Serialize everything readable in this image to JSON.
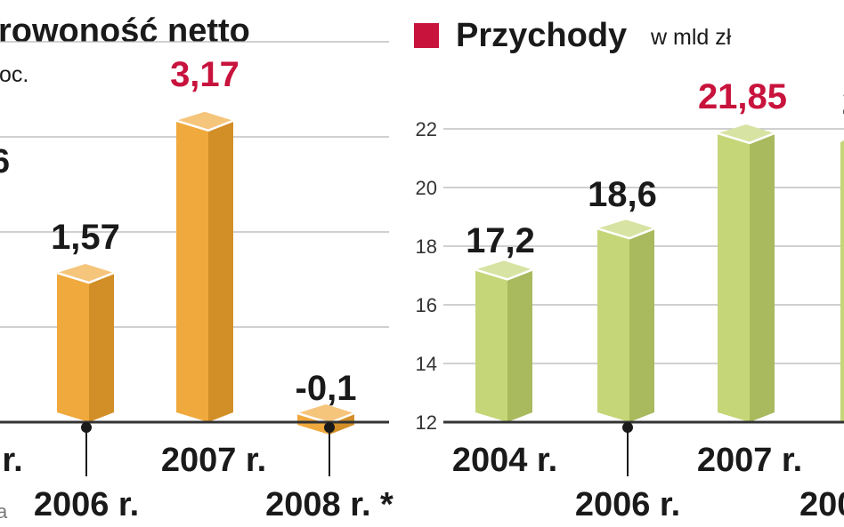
{
  "colors": {
    "profit_bar": "#EFA22C",
    "revenue_bar": "#BFD26B",
    "highlight_value": "#C8133D",
    "legend_marker": "#C8133D",
    "text": "#1a1a1a",
    "grid": "#b5b5b5"
  },
  "chart_data": [
    {
      "type": "bar",
      "title": "rowoność netto",
      "unit_label": "oc.",
      "categories": [
        "r.",
        "2006 r.",
        "2007 r.",
        "2008 r. *"
      ],
      "values": [
        null,
        1.57,
        3.17,
        -0.1
      ],
      "value_labels": [
        "",
        "1,57",
        "3,17",
        "-0,1"
      ],
      "highlighted_value_index": 2,
      "partial_value_label": "6",
      "footnote_fragment": "a",
      "grid": true
    },
    {
      "type": "bar",
      "title": "Przychody",
      "unit_label": "w mld zł",
      "categories": [
        "2004 r.",
        "2006 r.",
        "2007 r.",
        "200"
      ],
      "values": [
        17.2,
        18.6,
        21.85,
        null
      ],
      "value_labels": [
        "17,2",
        "18,6",
        "21,85",
        "2"
      ],
      "highlighted_value_index": 2,
      "ylim": [
        12,
        22
      ],
      "yticks": [
        12,
        14,
        16,
        18,
        20,
        22
      ],
      "grid": true
    }
  ]
}
